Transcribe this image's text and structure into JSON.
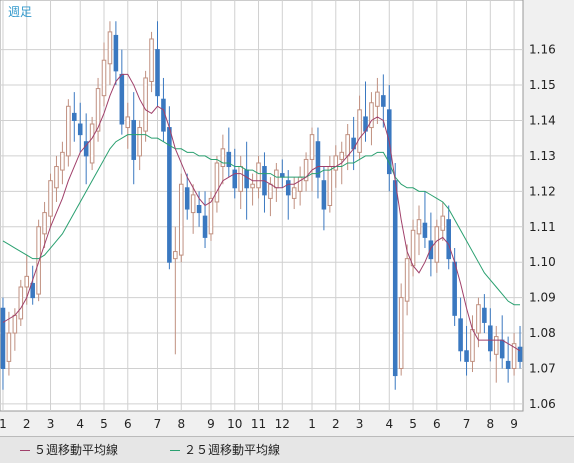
{
  "chart_data": {
    "type": "candlestick",
    "period_label": "週足",
    "y_range": [
      1.058,
      1.174
    ],
    "y_ticks": [
      "1.06",
      "1.07",
      "1.08",
      "1.09",
      "1.10",
      "1.11",
      "1.12",
      "1.13",
      "1.14",
      "1.15",
      "1.16"
    ],
    "x_tick_labels": [
      "1",
      "2",
      "3",
      "4",
      "5",
      "6",
      "7",
      "8",
      "9",
      "10",
      "11",
      "12",
      "1",
      "2",
      "3",
      "4",
      "5",
      "6",
      "7",
      "8",
      "9"
    ],
    "x_tick_candle_index": [
      0,
      4,
      8,
      13,
      17,
      21,
      26,
      30,
      35,
      39,
      43,
      47,
      52,
      56,
      60,
      65,
      69,
      73,
      78,
      82,
      86
    ],
    "colors": {
      "up_outline": "#c09080",
      "down_fill": "#3a78c0",
      "ma5": "#a0406a",
      "ma25": "#2aa070",
      "grid": "#d0d0d0",
      "axis_text": "#222222",
      "title_text": "#3399cc"
    },
    "candles": [
      [
        1.087,
        1.09,
        1.064,
        1.07
      ],
      [
        1.072,
        1.086,
        1.068,
        1.08
      ],
      [
        1.08,
        1.087,
        1.075,
        1.085
      ],
      [
        1.084,
        1.095,
        1.082,
        1.093
      ],
      [
        1.093,
        1.102,
        1.088,
        1.096
      ],
      [
        1.094,
        1.099,
        1.088,
        1.09
      ],
      [
        1.091,
        1.112,
        1.089,
        1.11
      ],
      [
        1.108,
        1.117,
        1.104,
        1.114
      ],
      [
        1.113,
        1.125,
        1.11,
        1.123
      ],
      [
        1.121,
        1.13,
        1.117,
        1.127
      ],
      [
        1.126,
        1.134,
        1.122,
        1.131
      ],
      [
        1.13,
        1.146,
        1.127,
        1.144
      ],
      [
        1.142,
        1.148,
        1.134,
        1.14
      ],
      [
        1.139,
        1.145,
        1.131,
        1.136
      ],
      [
        1.134,
        1.142,
        1.122,
        1.13
      ],
      [
        1.128,
        1.141,
        1.126,
        1.139
      ],
      [
        1.137,
        1.152,
        1.134,
        1.149
      ],
      [
        1.147,
        1.162,
        1.144,
        1.157
      ],
      [
        1.156,
        1.168,
        1.15,
        1.165
      ],
      [
        1.164,
        1.168,
        1.15,
        1.154
      ],
      [
        1.153,
        1.16,
        1.136,
        1.139
      ],
      [
        1.138,
        1.145,
        1.132,
        1.141
      ],
      [
        1.14,
        1.148,
        1.122,
        1.129
      ],
      [
        1.13,
        1.14,
        1.126,
        1.138
      ],
      [
        1.137,
        1.154,
        1.134,
        1.152
      ],
      [
        1.151,
        1.165,
        1.148,
        1.163
      ],
      [
        1.16,
        1.168,
        1.144,
        1.147
      ],
      [
        1.146,
        1.152,
        1.134,
        1.137
      ],
      [
        1.138,
        1.144,
        1.098,
        1.1
      ],
      [
        1.101,
        1.11,
        1.074,
        1.103
      ],
      [
        1.102,
        1.125,
        1.1,
        1.122
      ],
      [
        1.121,
        1.125,
        1.112,
        1.115
      ],
      [
        1.114,
        1.122,
        1.108,
        1.119
      ],
      [
        1.116,
        1.12,
        1.11,
        1.114
      ],
      [
        1.113,
        1.12,
        1.104,
        1.107
      ],
      [
        1.108,
        1.12,
        1.106,
        1.118
      ],
      [
        1.117,
        1.13,
        1.114,
        1.128
      ],
      [
        1.127,
        1.136,
        1.122,
        1.132
      ],
      [
        1.131,
        1.138,
        1.124,
        1.127
      ],
      [
        1.126,
        1.132,
        1.118,
        1.121
      ],
      [
        1.12,
        1.13,
        1.115,
        1.127
      ],
      [
        1.126,
        1.134,
        1.112,
        1.121
      ],
      [
        1.121,
        1.125,
        1.116,
        1.122
      ],
      [
        1.121,
        1.13,
        1.118,
        1.128
      ],
      [
        1.127,
        1.131,
        1.114,
        1.119
      ],
      [
        1.118,
        1.124,
        1.113,
        1.122
      ],
      [
        1.121,
        1.128,
        1.117,
        1.126
      ],
      [
        1.125,
        1.129,
        1.121,
        1.124
      ],
      [
        1.123,
        1.126,
        1.112,
        1.119
      ],
      [
        1.118,
        1.124,
        1.115,
        1.121
      ],
      [
        1.12,
        1.127,
        1.116,
        1.124
      ],
      [
        1.123,
        1.131,
        1.12,
        1.129
      ],
      [
        1.129,
        1.138,
        1.12,
        1.136
      ],
      [
        1.134,
        1.138,
        1.118,
        1.124
      ],
      [
        1.123,
        1.127,
        1.109,
        1.115
      ],
      [
        1.116,
        1.13,
        1.114,
        1.127
      ],
      [
        1.126,
        1.133,
        1.121,
        1.13
      ],
      [
        1.129,
        1.134,
        1.122,
        1.131
      ],
      [
        1.13,
        1.139,
        1.126,
        1.136
      ],
      [
        1.135,
        1.141,
        1.126,
        1.132
      ],
      [
        1.131,
        1.147,
        1.129,
        1.143
      ],
      [
        1.141,
        1.151,
        1.134,
        1.137
      ],
      [
        1.138,
        1.148,
        1.133,
        1.145
      ],
      [
        1.144,
        1.152,
        1.139,
        1.148
      ],
      [
        1.147,
        1.153,
        1.138,
        1.144
      ],
      [
        1.143,
        1.15,
        1.12,
        1.125
      ],
      [
        1.123,
        1.128,
        1.064,
        1.068
      ],
      [
        1.07,
        1.094,
        1.068,
        1.09
      ],
      [
        1.089,
        1.105,
        1.085,
        1.101
      ],
      [
        1.099,
        1.112,
        1.096,
        1.109
      ],
      [
        1.108,
        1.116,
        1.102,
        1.112
      ],
      [
        1.111,
        1.12,
        1.104,
        1.107
      ],
      [
        1.106,
        1.114,
        1.096,
        1.101
      ],
      [
        1.1,
        1.112,
        1.097,
        1.11
      ],
      [
        1.109,
        1.117,
        1.106,
        1.113
      ],
      [
        1.112,
        1.116,
        1.098,
        1.101
      ],
      [
        1.1,
        1.104,
        1.082,
        1.085
      ],
      [
        1.084,
        1.09,
        1.072,
        1.075
      ],
      [
        1.075,
        1.082,
        1.068,
        1.072
      ],
      [
        1.072,
        1.085,
        1.069,
        1.081
      ],
      [
        1.08,
        1.09,
        1.076,
        1.088
      ],
      [
        1.087,
        1.091,
        1.08,
        1.083
      ],
      [
        1.082,
        1.087,
        1.072,
        1.075
      ],
      [
        1.074,
        1.082,
        1.066,
        1.079
      ],
      [
        1.078,
        1.085,
        1.07,
        1.073
      ],
      [
        1.072,
        1.079,
        1.066,
        1.07
      ],
      [
        1.07,
        1.08,
        1.068,
        1.077
      ],
      [
        1.076,
        1.082,
        1.07,
        1.072
      ]
    ],
    "ma5": [
      1.083,
      1.084,
      1.085,
      1.087,
      1.09,
      1.095,
      1.1,
      1.105,
      1.11,
      1.114,
      1.118,
      1.123,
      1.127,
      1.131,
      1.133,
      1.135,
      1.138,
      1.142,
      1.147,
      1.151,
      1.153,
      1.153,
      1.15,
      1.146,
      1.143,
      1.142,
      1.144,
      1.143,
      1.138,
      1.132,
      1.128,
      1.124,
      1.121,
      1.118,
      1.116,
      1.117,
      1.12,
      1.123,
      1.124,
      1.125,
      1.125,
      1.124,
      1.123,
      1.123,
      1.123,
      1.122,
      1.121,
      1.121,
      1.122,
      1.122,
      1.123,
      1.124,
      1.126,
      1.127,
      1.127,
      1.127,
      1.127,
      1.128,
      1.13,
      1.132,
      1.135,
      1.137,
      1.14,
      1.141,
      1.14,
      1.134,
      1.123,
      1.112,
      1.103,
      1.099,
      1.097,
      1.1,
      1.104,
      1.106,
      1.107,
      1.105,
      1.1,
      1.094,
      1.087,
      1.081,
      1.078,
      1.078,
      1.078,
      1.078,
      1.078,
      1.077,
      1.076,
      1.075
    ],
    "ma25": [
      1.106,
      1.105,
      1.104,
      1.103,
      1.102,
      1.101,
      1.101,
      1.102,
      1.104,
      1.106,
      1.108,
      1.111,
      1.114,
      1.117,
      1.12,
      1.123,
      1.126,
      1.129,
      1.132,
      1.134,
      1.135,
      1.136,
      1.136,
      1.136,
      1.136,
      1.135,
      1.135,
      1.134,
      1.133,
      1.132,
      1.132,
      1.131,
      1.131,
      1.13,
      1.13,
      1.129,
      1.129,
      1.128,
      1.128,
      1.127,
      1.127,
      1.126,
      1.126,
      1.125,
      1.125,
      1.125,
      1.124,
      1.124,
      1.124,
      1.124,
      1.124,
      1.124,
      1.125,
      1.125,
      1.126,
      1.126,
      1.127,
      1.127,
      1.128,
      1.128,
      1.129,
      1.13,
      1.13,
      1.131,
      1.131,
      1.128,
      1.124,
      1.122,
      1.121,
      1.121,
      1.12,
      1.12,
      1.119,
      1.118,
      1.117,
      1.115,
      1.112,
      1.109,
      1.106,
      1.103,
      1.1,
      1.097,
      1.095,
      1.093,
      1.091,
      1.089,
      1.088,
      1.088
    ]
  },
  "legend": {
    "ma5_label": "５週移動平均線",
    "ma25_label": "２５週移動平均線"
  }
}
